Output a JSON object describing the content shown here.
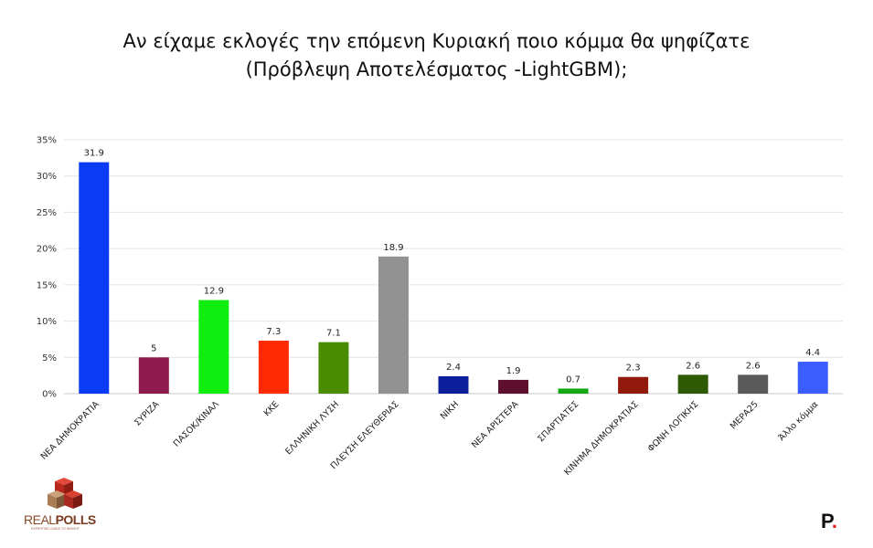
{
  "title_line1": "Αν είχαμε εκλογές την επόμενη Κυριακή ποιο κόμμα θα ψηφίζατε",
  "title_line2": "(Πρόβλεψη Αποτελέσματος -LightGBM);",
  "logo_left": {
    "text_real": "REAL",
    "text_polls": "POLLS",
    "tagline": "EXPERTISE LEADS TO INSIGHT"
  },
  "logo_right": {
    "letter": "P",
    "dot": "."
  },
  "chart_data": {
    "type": "bar",
    "title": "Αν είχαμε εκλογές την επόμενη Κυριακή ποιο κόμμα θα ψηφίζατε (Πρόβλεψη Αποτελέσματος -LightGBM);",
    "xlabel": "",
    "ylabel": "",
    "ylim": [
      0,
      35
    ],
    "yticks": [
      "0%",
      "5%",
      "10%",
      "15%",
      "20%",
      "25%",
      "30%",
      "35%"
    ],
    "grid": true,
    "categories": [
      "ΝΕΑ ΔΗΜΟΚΡΑΤΙΑ",
      "ΣΥΡΙΖΑ",
      "ΠΑΣΟΚ/ΚΙΝΑΛ",
      "ΚΚΕ",
      "ΕΛΛΗΝΙΚΗ ΛΥΣΗ",
      "ΠΛΕΥΣΗ ΕΛΕΥΘΕΡΙΑΣ",
      "ΝΙΚΗ",
      "ΝΕΑ ΑΡΙΣΤΕΡΑ",
      "ΣΠΑΡΤΙΑΤΕΣ",
      "ΚΙΝΗΜΑ ΔΗΜΟΚΡΑΤΙΑΣ",
      "ΦΩΝΗ ΛΟΓΙΚΗΣ",
      "ΜΕΡΑ25",
      "Άλλο κόμμα"
    ],
    "values": [
      31.9,
      5,
      12.9,
      7.3,
      7.1,
      18.9,
      2.4,
      1.9,
      0.7,
      2.3,
      2.6,
      2.6,
      4.4
    ],
    "value_labels": [
      "31.9",
      "5",
      "12.9",
      "7.3",
      "7.1",
      "18.9",
      "2.4",
      "1.9",
      "0.7",
      "2.3",
      "2.6",
      "2.6",
      "4.4"
    ],
    "colors": [
      "#0a3cf5",
      "#8e1a4e",
      "#10ee10",
      "#ff2a00",
      "#4a8c00",
      "#929292",
      "#0d1e9a",
      "#5e0f2e",
      "#14a814",
      "#911a0c",
      "#2f5a05",
      "#5a5a5a",
      "#3b5cff"
    ]
  }
}
